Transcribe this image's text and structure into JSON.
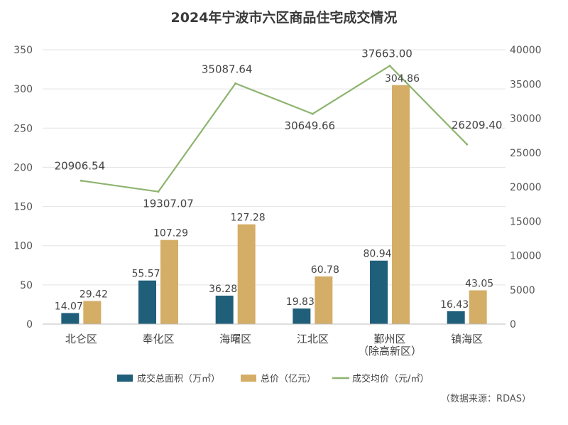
{
  "chart_data": {
    "type": "bar",
    "title": "2024年宁波市六区商品住宅成交情况",
    "source": "（数据来源：RDAS）",
    "categories": [
      "北仑区",
      "奉化区",
      "海曙区",
      "江北区",
      "鄞州区（除高新区）",
      "镇海区"
    ],
    "category_lines": [
      [
        "北仑区"
      ],
      [
        "奉化区"
      ],
      [
        "海曙区"
      ],
      [
        "江北区"
      ],
      [
        "鄞州区",
        "（除高新区）"
      ],
      [
        "镇海区"
      ]
    ],
    "series": [
      {
        "name": "成交总面积（万㎡）",
        "type": "bar",
        "axis": "left",
        "color": "#1f5f7a",
        "values": [
          14.07,
          55.57,
          36.28,
          19.83,
          80.94,
          16.43
        ],
        "labels": [
          "14.07",
          "55.57",
          "36.28",
          "19.83",
          "80.94",
          "16.43"
        ]
      },
      {
        "name": "总价（亿元）",
        "type": "bar",
        "axis": "left",
        "color": "#d4ad66",
        "values": [
          29.42,
          107.29,
          127.28,
          60.78,
          304.86,
          43.05
        ],
        "labels": [
          "29.42",
          "107.29",
          "127.28",
          "60.78",
          "304.86",
          "43.05"
        ]
      },
      {
        "name": "成交均价（元/㎡）",
        "type": "line",
        "axis": "right",
        "color": "#8db46e",
        "values": [
          20906.54,
          19307.07,
          35087.64,
          30649.66,
          37663.0,
          26209.4
        ],
        "labels": [
          "20906.54",
          "19307.07",
          "35087.64",
          "30649.66",
          "37663.00",
          "26209.40"
        ]
      }
    ],
    "y_left": {
      "min": 0,
      "max": 350,
      "ticks": [
        "0",
        "50",
        "100",
        "150",
        "200",
        "250",
        "300",
        "350"
      ]
    },
    "y_right": {
      "min": 0,
      "max": 40000,
      "ticks": [
        "0",
        "5000",
        "10000",
        "15000",
        "20000",
        "25000",
        "30000",
        "35000",
        "40000"
      ]
    },
    "grid": true,
    "legend_position": "bottom"
  }
}
